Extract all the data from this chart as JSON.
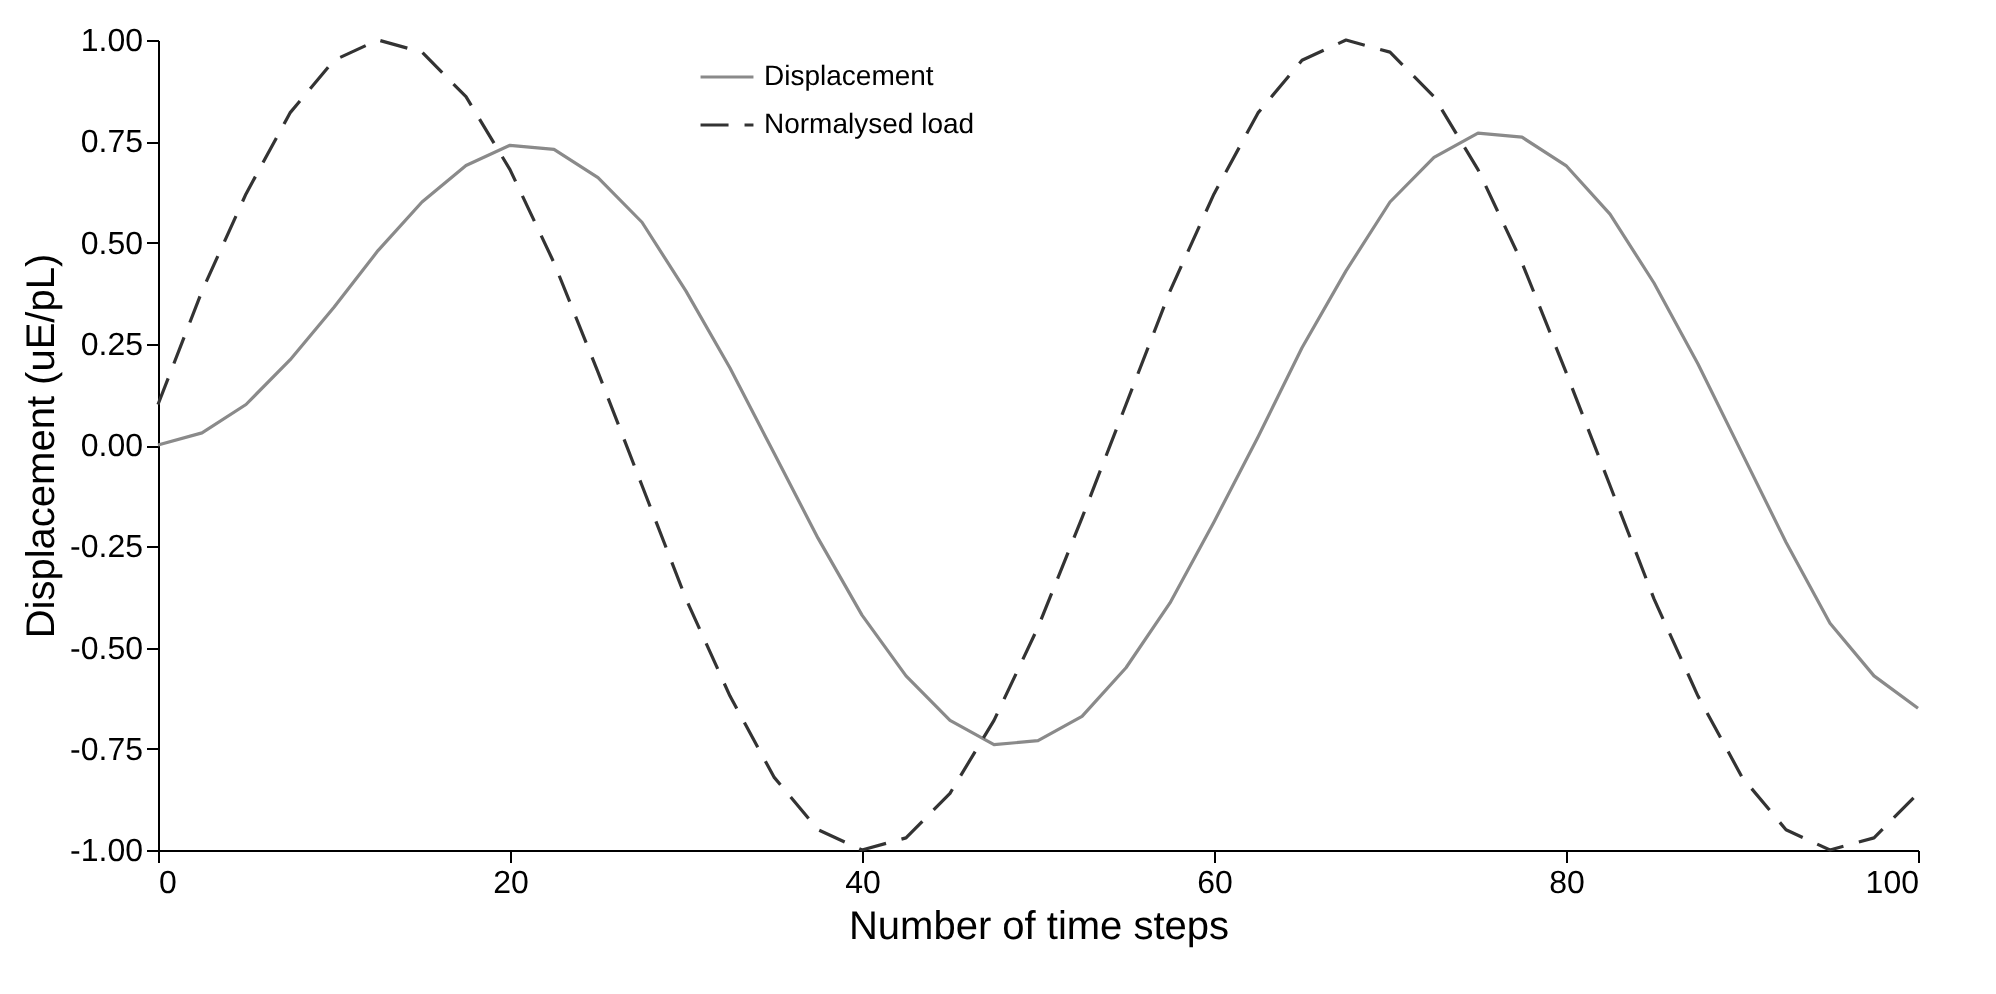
{
  "chart_data": {
    "type": "line",
    "xlabel": "Number of time steps",
    "ylabel": "Displacement (uE/pL)",
    "x": [
      0,
      2.5,
      5,
      7.5,
      10,
      12.5,
      15,
      17.5,
      20,
      22.5,
      25,
      27.5,
      30,
      32.5,
      35,
      37.5,
      40,
      42.5,
      45,
      47.5,
      50,
      52.5,
      55,
      57.5,
      60,
      62.5,
      65,
      67.5,
      70,
      72.5,
      75,
      77.5,
      80,
      82.5,
      85,
      87.5,
      90,
      92.5,
      95,
      97.5,
      100
    ],
    "series": [
      {
        "name": "Displacement",
        "color": "#8a8a8a",
        "line_style": "solid",
        "values": [
          0,
          0.03,
          0.1,
          0.21,
          0.34,
          0.48,
          0.6,
          0.69,
          0.74,
          0.73,
          0.66,
          0.55,
          0.38,
          0.19,
          -0.02,
          -0.23,
          -0.42,
          -0.57,
          -0.68,
          -0.74,
          -0.73,
          -0.67,
          -0.55,
          -0.39,
          -0.19,
          0.02,
          0.24,
          0.43,
          0.6,
          0.71,
          0.77,
          0.76,
          0.69,
          0.57,
          0.4,
          0.2,
          -0.02,
          -0.24,
          -0.44,
          -0.57,
          -0.65
        ]
      },
      {
        "name": "Normalysed load",
        "color": "#333333",
        "line_style": "dashed",
        "values": [
          0.1,
          0.38,
          0.62,
          0.82,
          0.95,
          1.0,
          0.97,
          0.86,
          0.68,
          0.45,
          0.18,
          -0.1,
          -0.38,
          -0.62,
          -0.82,
          -0.95,
          -1.0,
          -0.97,
          -0.86,
          -0.68,
          -0.45,
          -0.18,
          0.1,
          0.38,
          0.62,
          0.82,
          0.95,
          1.0,
          0.97,
          0.86,
          0.68,
          0.45,
          0.18,
          -0.1,
          -0.38,
          -0.62,
          -0.82,
          -0.95,
          -1.0,
          -0.97,
          -0.86
        ]
      }
    ],
    "xlim": [
      0,
      100
    ],
    "xticks": [
      0,
      20,
      40,
      60,
      80,
      100
    ],
    "ylim": [
      -1,
      1
    ],
    "yticks": [
      {
        "value": -1,
        "label": "-1.00"
      },
      {
        "value": -0.75,
        "label": "-0.75"
      },
      {
        "value": -0.5,
        "label": "-0.50"
      },
      {
        "value": -0.25,
        "label": "-0.25"
      },
      {
        "value": 0,
        "label": "0.00"
      },
      {
        "value": 0.25,
        "label": "0.25"
      },
      {
        "value": 0.5,
        "label": "0.50"
      },
      {
        "value": 0.75,
        "label": "0.75"
      },
      {
        "value": 1,
        "label": "1.00"
      }
    ],
    "grid": false,
    "legend": "top"
  }
}
